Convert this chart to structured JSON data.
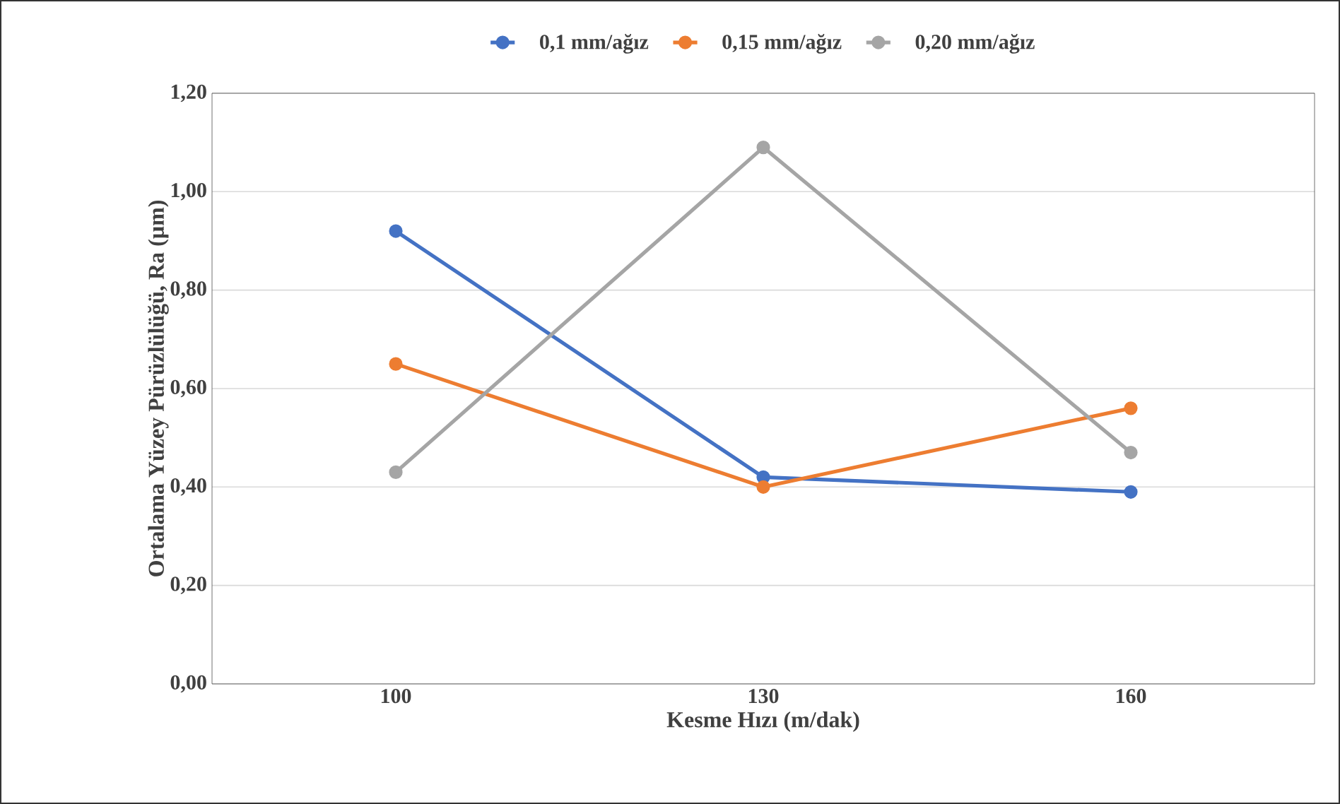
{
  "chart_data": {
    "type": "line",
    "xlabel": "Kesme Hızı (m/dak)",
    "ylabel": "Ortalama Yüzey Pürüzlülüğü, Ra (µm)",
    "categories": [
      "100",
      "130",
      "160"
    ],
    "series": [
      {
        "name": "0,1 mm/ağız",
        "color": "#4472c4",
        "values": [
          0.92,
          0.42,
          0.39
        ]
      },
      {
        "name": "0,15 mm/ağız",
        "color": "#ed7d31",
        "values": [
          0.65,
          0.4,
          0.56
        ]
      },
      {
        "name": "0,20 mm/ağız",
        "color": "#a5a5a5",
        "values": [
          0.43,
          1.09,
          0.47
        ]
      }
    ],
    "ylim": [
      0,
      1.2
    ],
    "yticks": [
      {
        "value": 0,
        "label": "0,00"
      },
      {
        "value": 0.2,
        "label": "0,20"
      },
      {
        "value": 0.4,
        "label": "0,40"
      },
      {
        "value": 0.6,
        "label": "0,60"
      },
      {
        "value": 0.8,
        "label": "0,80"
      },
      {
        "value": 1.0,
        "label": "1,00"
      },
      {
        "value": 1.2,
        "label": "1,20"
      }
    ],
    "grid": "y",
    "legend": "top",
    "marker": "circle",
    "line_style": "solid"
  }
}
